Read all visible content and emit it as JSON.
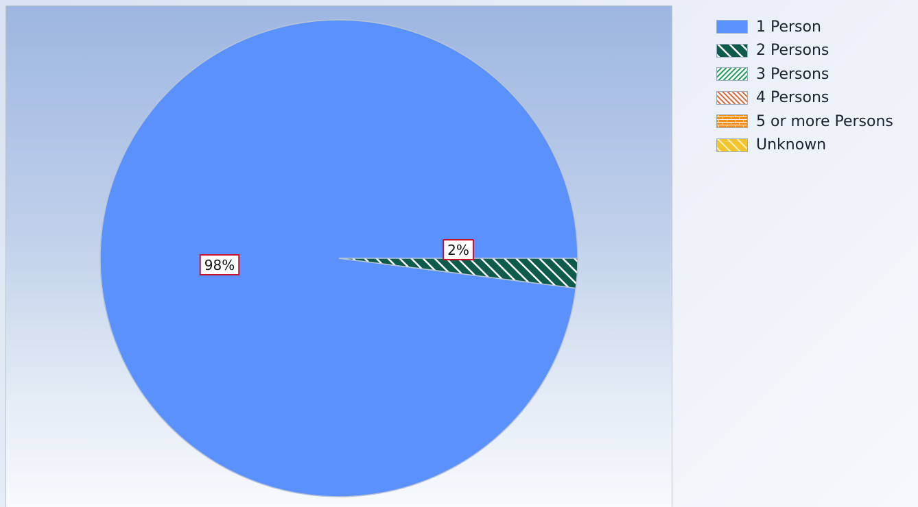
{
  "chart_data": {
    "type": "pie",
    "categories": [
      "1 Person",
      "2 Persons",
      "3 Persons",
      "4 Persons",
      "5 or more Persons",
      "Unknown"
    ],
    "values": [
      98,
      2,
      0,
      0,
      0,
      0
    ],
    "labels": [
      "98%",
      "2%",
      "",
      "",
      "",
      ""
    ],
    "title": "",
    "legend_position": "top-right",
    "series_styles": [
      {
        "color": "#5a91fd",
        "pattern": "solid"
      },
      {
        "color": "#0f5b4b",
        "pattern": "wide-diagonal-up"
      },
      {
        "color": "#1f9a5c",
        "pattern": "narrow-diagonal-down"
      },
      {
        "color": "#d9643a",
        "pattern": "narrow-diagonal-up"
      },
      {
        "color": "#f28a1e",
        "pattern": "brick"
      },
      {
        "color": "#f4c430",
        "pattern": "wide-diagonal-up-light"
      }
    ]
  }
}
